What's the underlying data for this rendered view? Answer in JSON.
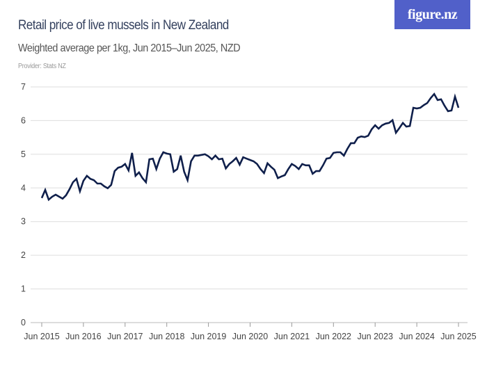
{
  "header": {
    "title": "Retail price of live mussels in New Zealand",
    "subtitle": "Weighted average per 1kg, Jun 2015–Jun 2025, NZD",
    "provider": "Provider: Stats NZ",
    "logo_text": "figure.nz"
  },
  "colors": {
    "line": "#0f1f4b",
    "logo_bg": "#5160c9",
    "grid": "#dddddd"
  },
  "chart_data": {
    "type": "line",
    "title": "Retail price of live mussels in New Zealand",
    "subtitle": "Weighted average per 1kg, Jun 2015–Jun 2025, NZD",
    "xlabel": "",
    "ylabel": "",
    "x_start": "Jun 2015",
    "x_end": "Jun 2025",
    "frequency": "monthly",
    "ylim": [
      0,
      7
    ],
    "yticks": [
      "0",
      "1",
      "2",
      "3",
      "4",
      "5",
      "6",
      "7"
    ],
    "xticks": [
      "Jun 2015",
      "Jun 2016",
      "Jun 2017",
      "Jun 2018",
      "Jun 2019",
      "Jun 2020",
      "Jun 2021",
      "Jun 2022",
      "Jun 2023",
      "Jun 2024",
      "Jun 2025"
    ],
    "grid": true,
    "values": [
      3.7,
      3.94,
      3.65,
      3.74,
      3.8,
      3.74,
      3.68,
      3.78,
      3.96,
      4.17,
      4.27,
      3.9,
      4.21,
      4.36,
      4.27,
      4.23,
      4.13,
      4.13,
      4.05,
      3.99,
      4.09,
      4.5,
      4.6,
      4.63,
      4.71,
      4.52,
      5.04,
      4.36,
      4.46,
      4.29,
      4.17,
      4.85,
      4.87,
      4.56,
      4.87,
      5.06,
      5.02,
      5.0,
      4.48,
      4.56,
      4.96,
      4.48,
      4.23,
      4.79,
      4.96,
      4.96,
      4.98,
      5.0,
      4.94,
      4.85,
      4.96,
      4.85,
      4.87,
      4.58,
      4.71,
      4.79,
      4.89,
      4.69,
      4.91,
      4.87,
      4.83,
      4.79,
      4.71,
      4.56,
      4.44,
      4.73,
      4.63,
      4.54,
      4.29,
      4.34,
      4.38,
      4.56,
      4.71,
      4.65,
      4.56,
      4.71,
      4.67,
      4.67,
      4.42,
      4.5,
      4.5,
      4.67,
      4.87,
      4.89,
      5.04,
      5.06,
      5.06,
      4.96,
      5.16,
      5.33,
      5.33,
      5.49,
      5.53,
      5.51,
      5.55,
      5.74,
      5.86,
      5.76,
      5.86,
      5.91,
      5.93,
      6.01,
      5.64,
      5.78,
      5.93,
      5.82,
      5.84,
      6.38,
      6.36,
      6.38,
      6.46,
      6.52,
      6.67,
      6.79,
      6.61,
      6.63,
      6.44,
      6.28,
      6.3,
      6.71,
      6.38
    ]
  }
}
